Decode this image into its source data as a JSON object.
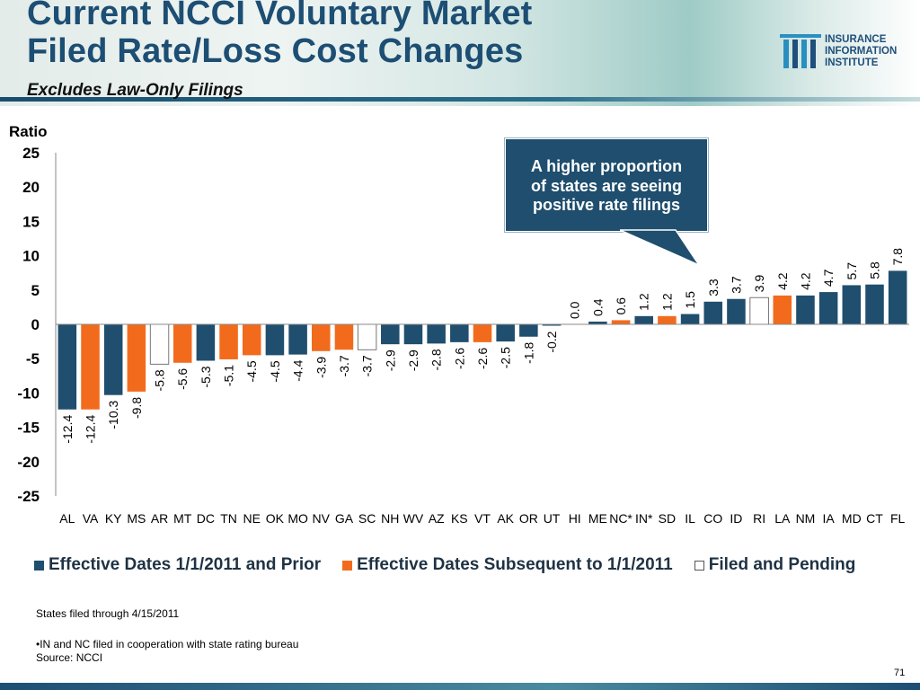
{
  "header": {
    "title_line1": "Current NCCI Voluntary Market",
    "title_line2": "Filed Rate/Loss Cost Changes",
    "subtitle": "Excludes Law-Only Filings",
    "logo_line1": "INSURANCE",
    "logo_line2": "INFORMATION",
    "logo_line3": "INSTITUTE"
  },
  "callout": {
    "line1": "A higher proportion",
    "line2": "of states are seeing",
    "line3": "positive rate filings"
  },
  "notes": {
    "line1": "States filed through 4/15/2011",
    "line2": "•IN and NC filed in cooperation with state rating bureau",
    "line3": "Source: NCCI"
  },
  "page_number": "71",
  "colors": {
    "prior": "#1f4e6e",
    "subsequent": "#f26b1d",
    "pending": "#ffffff",
    "title": "#1d4e73"
  },
  "chart_data": {
    "type": "bar",
    "ylabel": "Ratio",
    "ylim": [
      -25,
      25
    ],
    "yticks": [
      25,
      20,
      15,
      10,
      5,
      0,
      -5,
      -10,
      -15,
      -20,
      -25
    ],
    "categories": [
      "AL",
      "VA",
      "KY",
      "MS",
      "AR",
      "MT",
      "DC",
      "TN",
      "NE",
      "OK",
      "MO",
      "NV",
      "GA",
      "SC",
      "NH",
      "WV",
      "AZ",
      "KS",
      "VT",
      "AK",
      "OR",
      "UT",
      "HI",
      "ME",
      "NC*",
      "IN*",
      "SD",
      "IL",
      "CO",
      "ID",
      "RI",
      "LA",
      "NM",
      "IA",
      "MD",
      "CT",
      "FL"
    ],
    "values": [
      -12.4,
      -12.4,
      -10.3,
      -9.8,
      -5.8,
      -5.6,
      -5.3,
      -5.1,
      -4.5,
      -4.5,
      -4.4,
      -3.9,
      -3.7,
      -3.7,
      -2.9,
      -2.9,
      -2.8,
      -2.6,
      -2.6,
      -2.5,
      -1.8,
      -0.2,
      0.0,
      0.4,
      0.6,
      1.2,
      1.2,
      1.5,
      3.3,
      3.7,
      3.9,
      4.2,
      4.2,
      4.7,
      5.7,
      5.8,
      7.8
    ],
    "value_labels": [
      "-12.4",
      "-12.4",
      "-10.3",
      "-9.8",
      "-5.8",
      "-5.6",
      "-5.3",
      "-5.1",
      "-4.5",
      "-4.5",
      "-4.4",
      "-3.9",
      "-3.7",
      "-3.7",
      "-2.9",
      "-2.9",
      "-2.8",
      "-2.6",
      "-2.6",
      "-2.5",
      "-1.8",
      "-0.2",
      "0.0",
      "0.4",
      "0.6",
      "1.2",
      "1.2",
      "1.5",
      "3.3",
      "3.7",
      "3.9",
      "4.2",
      "4.2",
      "4.7",
      "5.7",
      "5.8",
      "7.8"
    ],
    "group": [
      "prior",
      "subsequent",
      "prior",
      "subsequent",
      "pending",
      "subsequent",
      "prior",
      "subsequent",
      "subsequent",
      "prior",
      "prior",
      "subsequent",
      "subsequent",
      "pending",
      "prior",
      "prior",
      "prior",
      "prior",
      "subsequent",
      "prior",
      "prior",
      "prior",
      "prior",
      "prior",
      "subsequent",
      "prior",
      "subsequent",
      "prior",
      "prior",
      "prior",
      "pending",
      "subsequent",
      "prior",
      "prior",
      "prior",
      "prior",
      "prior"
    ],
    "legend": [
      {
        "key": "prior",
        "label": "Effective Dates 1/1/2011 and Prior"
      },
      {
        "key": "subsequent",
        "label": "Effective Dates Subsequent to 1/1/2011"
      },
      {
        "key": "pending",
        "label": "Filed and Pending"
      }
    ],
    "legend_position": "bottom",
    "grid": false
  }
}
